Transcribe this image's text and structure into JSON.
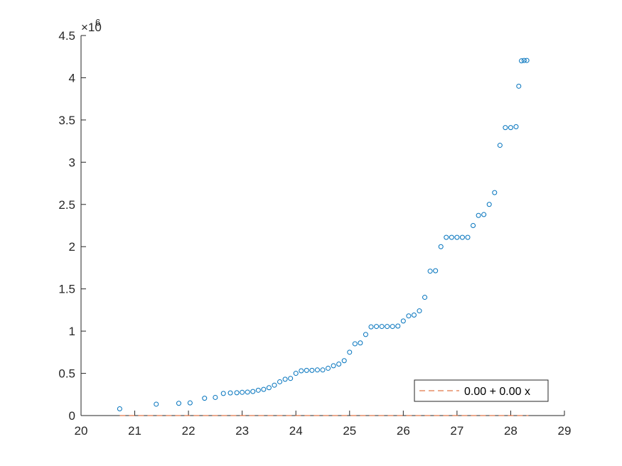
{
  "chart_data": {
    "type": "scatter",
    "xlim": [
      20,
      29
    ],
    "ylim": [
      0,
      4500000
    ],
    "x_ticks": [
      20,
      21,
      22,
      23,
      24,
      25,
      26,
      27,
      28,
      29
    ],
    "y_ticks": [
      0,
      500000,
      1000000,
      1500000,
      2000000,
      2500000,
      3000000,
      3500000,
      4000000,
      4500000
    ],
    "x_tick_labels": [
      "20",
      "21",
      "22",
      "23",
      "24",
      "25",
      "26",
      "27",
      "28",
      "29"
    ],
    "y_tick_labels": [
      "0",
      "0.5",
      "1",
      "1.5",
      "2",
      "2.5",
      "3",
      "3.5",
      "4",
      "4.5"
    ],
    "y_exponent_base": "×10",
    "y_exponent_power": "6",
    "grid": false,
    "legend_position": "bottom-right",
    "series": [
      {
        "kind": "scatter",
        "marker": "open-circle",
        "color": "#0072BD",
        "points": [
          [
            20.72,
            80000
          ],
          [
            21.4,
            135000
          ],
          [
            21.82,
            145000
          ],
          [
            22.03,
            150000
          ],
          [
            22.3,
            205000
          ],
          [
            22.5,
            215000
          ],
          [
            22.65,
            262000
          ],
          [
            22.78,
            268000
          ],
          [
            22.9,
            270000
          ],
          [
            23.0,
            275000
          ],
          [
            23.1,
            278000
          ],
          [
            23.2,
            285000
          ],
          [
            23.3,
            300000
          ],
          [
            23.4,
            310000
          ],
          [
            23.5,
            330000
          ],
          [
            23.6,
            360000
          ],
          [
            23.7,
            400000
          ],
          [
            23.8,
            430000
          ],
          [
            23.9,
            440000
          ],
          [
            24.0,
            500000
          ],
          [
            24.1,
            530000
          ],
          [
            24.2,
            535000
          ],
          [
            24.3,
            535000
          ],
          [
            24.4,
            540000
          ],
          [
            24.5,
            540000
          ],
          [
            24.6,
            560000
          ],
          [
            24.7,
            590000
          ],
          [
            24.8,
            610000
          ],
          [
            24.9,
            650000
          ],
          [
            25.0,
            750000
          ],
          [
            25.1,
            850000
          ],
          [
            25.2,
            860000
          ],
          [
            25.3,
            960000
          ],
          [
            25.4,
            1050000
          ],
          [
            25.5,
            1055000
          ],
          [
            25.6,
            1055000
          ],
          [
            25.7,
            1055000
          ],
          [
            25.8,
            1055000
          ],
          [
            25.9,
            1060000
          ],
          [
            26.0,
            1120000
          ],
          [
            26.1,
            1180000
          ],
          [
            26.2,
            1190000
          ],
          [
            26.3,
            1240000
          ],
          [
            26.4,
            1400000
          ],
          [
            26.5,
            1710000
          ],
          [
            26.6,
            1715000
          ],
          [
            26.7,
            2000000
          ],
          [
            26.8,
            2110000
          ],
          [
            26.9,
            2110000
          ],
          [
            27.0,
            2110000
          ],
          [
            27.1,
            2110000
          ],
          [
            27.2,
            2110000
          ],
          [
            27.3,
            2250000
          ],
          [
            27.4,
            2370000
          ],
          [
            27.5,
            2380000
          ],
          [
            27.6,
            2500000
          ],
          [
            27.7,
            2640000
          ],
          [
            27.8,
            3200000
          ],
          [
            27.9,
            3410000
          ],
          [
            28.0,
            3410000
          ],
          [
            28.1,
            3420000
          ],
          [
            28.15,
            3900000
          ],
          [
            28.2,
            4200000
          ],
          [
            28.25,
            4205000
          ],
          [
            28.3,
            4205000
          ]
        ]
      },
      {
        "kind": "line",
        "style": "dashed",
        "name": "0.00 + 0.00 x",
        "color": "#D95319",
        "x_range": [
          20.72,
          28.33
        ],
        "intercept": 0,
        "slope": 0
      }
    ]
  }
}
